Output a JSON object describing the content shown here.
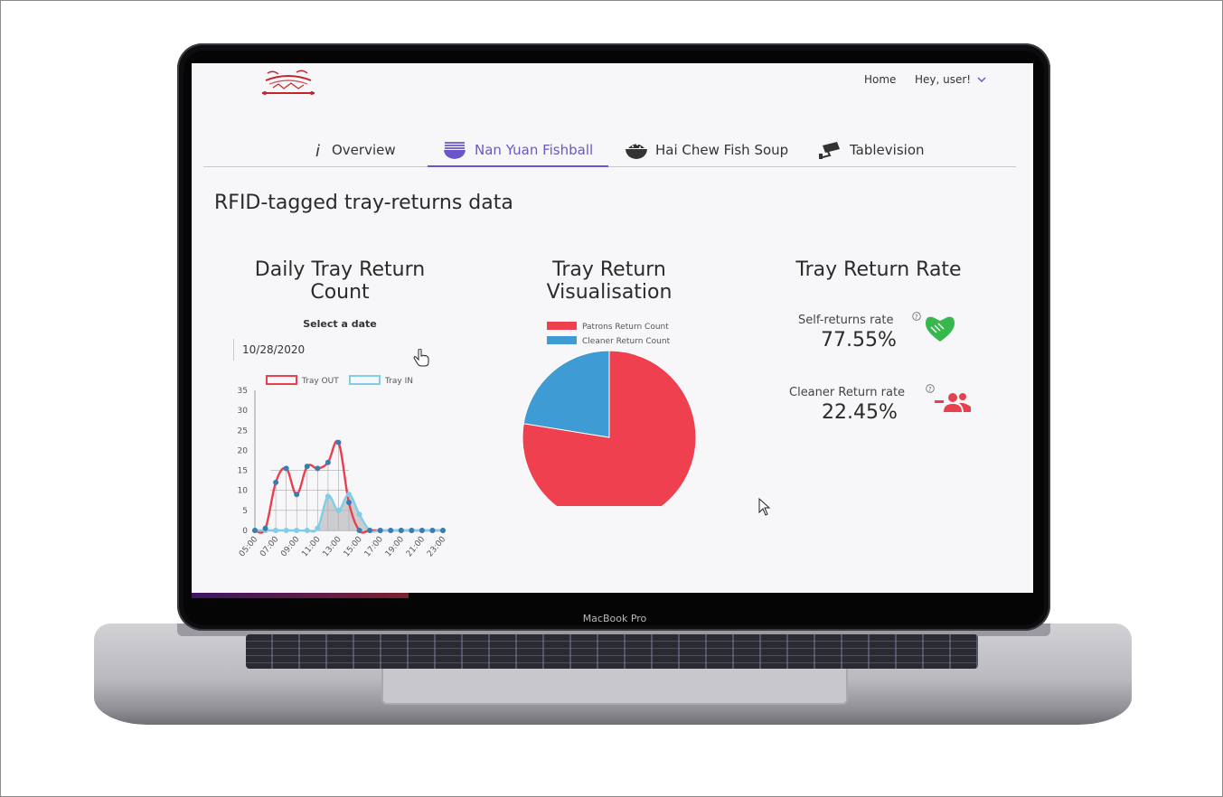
{
  "device": {
    "brand_label": "MacBook Pro"
  },
  "header": {
    "nav_home": "Home",
    "nav_user": "Hey, user!"
  },
  "tabs": [
    {
      "label": "Overview",
      "icon": "info-icon",
      "active": false
    },
    {
      "label": "Nan Yuan Fishball",
      "icon": "noodle-bowl-icon",
      "active": true
    },
    {
      "label": "Hai Chew Fish Soup",
      "icon": "rice-bowl-icon",
      "active": false
    },
    {
      "label": "Tablevision",
      "icon": "cctv-camera-icon",
      "active": false
    }
  ],
  "page": {
    "title": "RFID-tagged tray-returns data"
  },
  "daily": {
    "title": "Daily Tray Return Count",
    "select_label": "Select a date",
    "date_value": "10/28/2020"
  },
  "pie": {
    "title": "Tray Return Visualisation"
  },
  "rates": {
    "title": "Tray Return Rate",
    "self_label": "Self-returns rate",
    "self_value": "77.55%",
    "cleaner_label": "Cleaner Return rate",
    "cleaner_value": "22.45%"
  },
  "colors": {
    "accent": "#6b56c9",
    "tray_out": "#e8404f",
    "tray_in": "#7fcde8",
    "patrons": "#ef4050",
    "cleaner": "#3e9bd3",
    "handshake": "#37b84e",
    "cleaner_icon": "#e5414e"
  },
  "chart_data": [
    {
      "type": "line",
      "series": [
        {
          "name": "Tray OUT",
          "values": [
            0,
            0.5,
            12,
            15.5,
            9,
            16,
            15.5,
            17,
            22,
            7,
            0,
            0,
            0,
            0,
            0,
            0,
            0,
            0,
            0
          ]
        },
        {
          "name": "Tray IN",
          "values": [
            0,
            0,
            0,
            0,
            0,
            0,
            0.5,
            8.5,
            5,
            9,
            4,
            0,
            0,
            0,
            0,
            0,
            0,
            0,
            0
          ]
        }
      ],
      "x": [
        "05:00",
        "06:00",
        "07:00",
        "08:00",
        "09:00",
        "10:00",
        "11:00",
        "12:00",
        "13:00",
        "14:00",
        "15:00",
        "16:00",
        "17:00",
        "18:00",
        "19:00",
        "20:00",
        "21:00",
        "22:00",
        "23:00"
      ],
      "x_tick_labels": [
        "05:00",
        "07:00",
        "09:00",
        "11:00",
        "13:00",
        "15:00",
        "17:00",
        "19:00",
        "21:00",
        "23:00"
      ],
      "ylim": [
        0,
        35
      ],
      "y_ticks": [
        0,
        5,
        10,
        15,
        20,
        25,
        30,
        35
      ],
      "legend": "top"
    },
    {
      "type": "pie",
      "categories": [
        "Patrons Return Count",
        "Cleaner Return Count"
      ],
      "values": [
        77.55,
        22.45
      ],
      "legend": "top"
    }
  ]
}
